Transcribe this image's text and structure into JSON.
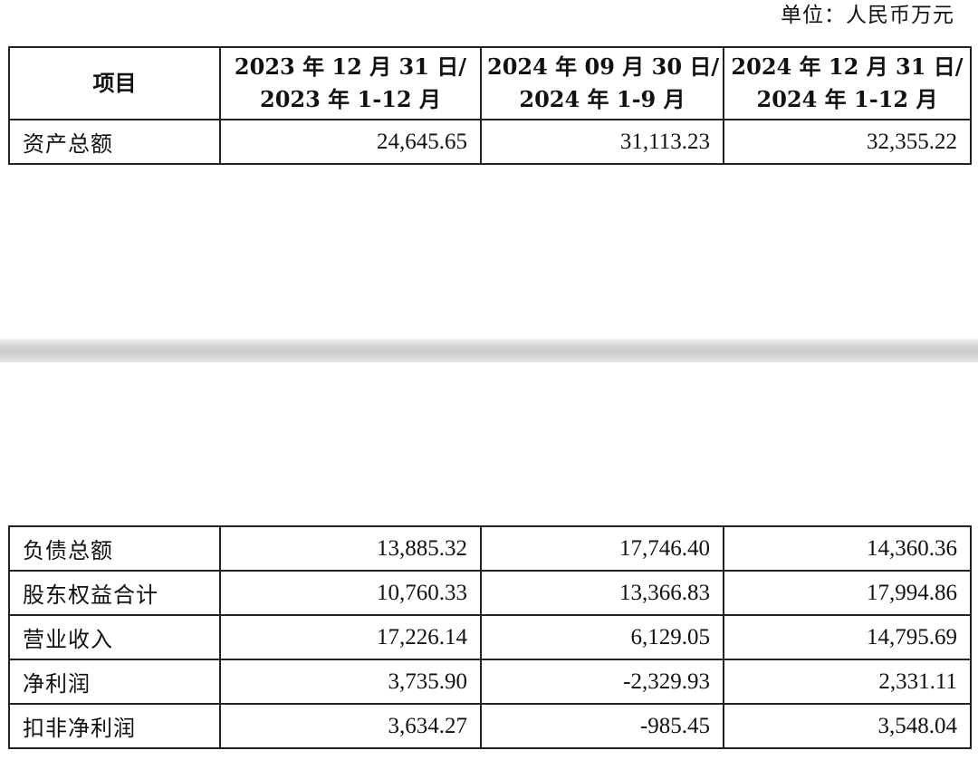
{
  "unit_note": "单位：人民币万元",
  "header": {
    "item": "项目",
    "col1_line1": "2023 年 12 月 31 日/",
    "col1_line2": "2023 年 1-12 月",
    "col2_line1": "2024 年 09 月 30 日/",
    "col2_line2": "2024 年 1-9 月",
    "col3_line1": "2024 年 12 月 31 日/",
    "col3_line2": "2024 年 1-12 月"
  },
  "rows": [
    {
      "label": "资产总额",
      "v2023": "24,645.65",
      "v2024q3": "31,113.23",
      "v2024": "32,355.22"
    },
    {
      "label": "负债总额",
      "v2023": "13,885.32",
      "v2024q3": "17,746.40",
      "v2024": "14,360.36"
    },
    {
      "label": "股东权益合计",
      "v2023": "10,760.33",
      "v2024q3": "13,366.83",
      "v2024": "17,994.86"
    },
    {
      "label": "营业收入",
      "v2023": "17,226.14",
      "v2024q3": "6,129.05",
      "v2024": "14,795.69"
    },
    {
      "label": "净利润",
      "v2023": "3,735.90",
      "v2024q3": "-2,329.93",
      "v2024": "2,331.11"
    },
    {
      "label": "扣非净利润",
      "v2023": "3,634.27",
      "v2024q3": "-985.45",
      "v2024": "3,548.04"
    }
  ]
}
